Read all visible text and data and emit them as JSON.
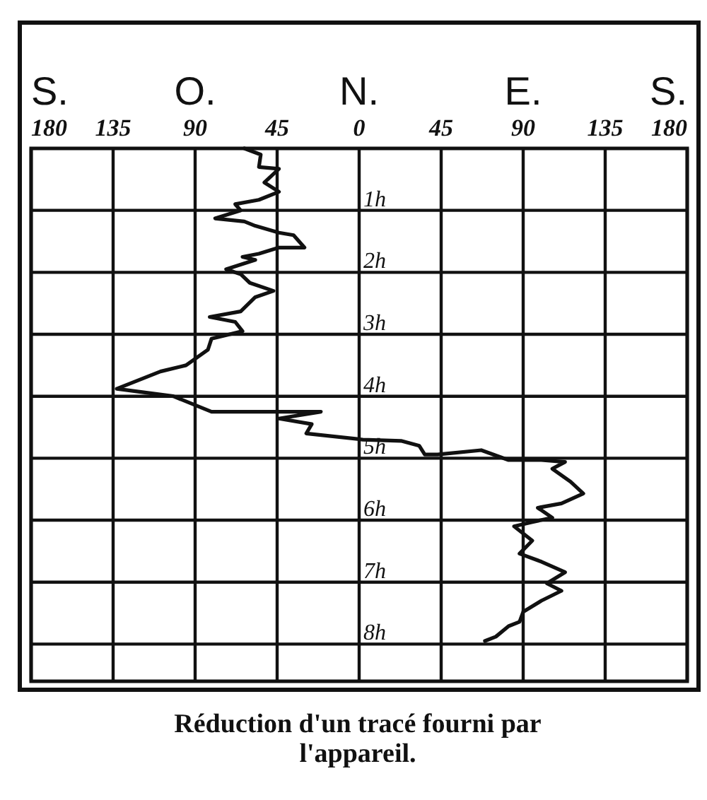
{
  "chart_data": {
    "type": "line",
    "annotations": [
      "Réduction d'un tracé fourni par l'appareil.",
      "S.",
      "O.",
      "N.",
      "E.",
      "S."
    ],
    "x": [
      -63,
      -54,
      -55,
      -44,
      -52,
      -44,
      -55,
      -68,
      -65,
      -79,
      -63,
      -57,
      -44,
      -36,
      -30,
      -44,
      -55,
      -64,
      -57,
      -73,
      -65,
      -60,
      -47,
      -57,
      -65,
      -82,
      -68,
      -64,
      -81,
      -83,
      -95,
      -109,
      -133,
      -102,
      -81,
      -21,
      -44,
      -26,
      -29,
      2,
      23,
      33,
      36,
      43,
      67,
      82,
      100,
      113,
      106,
      116,
      123,
      111,
      98,
      106,
      95,
      85,
      95,
      88,
      100,
      113,
      103,
      111,
      100,
      90,
      88,
      82,
      75,
      69
    ],
    "series": [
      {
        "color": "#111111",
        "values": [
          0,
          0.1,
          0.3,
          0.33,
          0.55,
          0.7,
          0.83,
          0.9,
          1.0,
          1.13,
          1.18,
          1.25,
          1.36,
          1.4,
          1.6,
          1.6,
          1.7,
          1.75,
          1.8,
          1.95,
          2.03,
          2.17,
          2.3,
          2.4,
          2.63,
          2.72,
          2.8,
          2.95,
          3.07,
          3.25,
          3.5,
          3.6,
          3.88,
          4.0,
          4.25,
          4.25,
          4.36,
          4.45,
          4.6,
          4.7,
          4.72,
          4.8,
          4.94,
          4.94,
          4.87,
          5.03,
          5.03,
          5.06,
          5.17,
          5.38,
          5.57,
          5.73,
          5.8,
          5.96,
          6.03,
          6.1,
          6.33,
          6.54,
          6.67,
          6.84,
          7.02,
          7.14,
          7.3,
          7.48,
          7.64,
          7.71,
          7.88,
          7.95
        ]
      }
    ],
    "xlim": [
      -180,
      180
    ],
    "xticks": [
      {
        "value": -180,
        "label": "180"
      },
      {
        "value": -135,
        "label": "135"
      },
      {
        "value": -90,
        "label": "90"
      },
      {
        "value": -45,
        "label": "45"
      },
      0,
      45,
      90,
      135,
      180
    ],
    "ylim": [
      8.6,
      0
    ],
    "yticks": [
      {
        "value": 1,
        "label": "1h"
      },
      {
        "value": 2,
        "label": "2h"
      },
      {
        "value": 3,
        "label": "3h"
      },
      {
        "value": 4,
        "label": "4h"
      },
      {
        "value": 5,
        "label": "5h"
      },
      {
        "value": 6,
        "label": "6h"
      },
      {
        "value": 7,
        "label": "7h"
      },
      {
        "value": 8,
        "label": "8h"
      }
    ],
    "grid": true,
    "marker": "none",
    "line_style": "solid"
  }
}
